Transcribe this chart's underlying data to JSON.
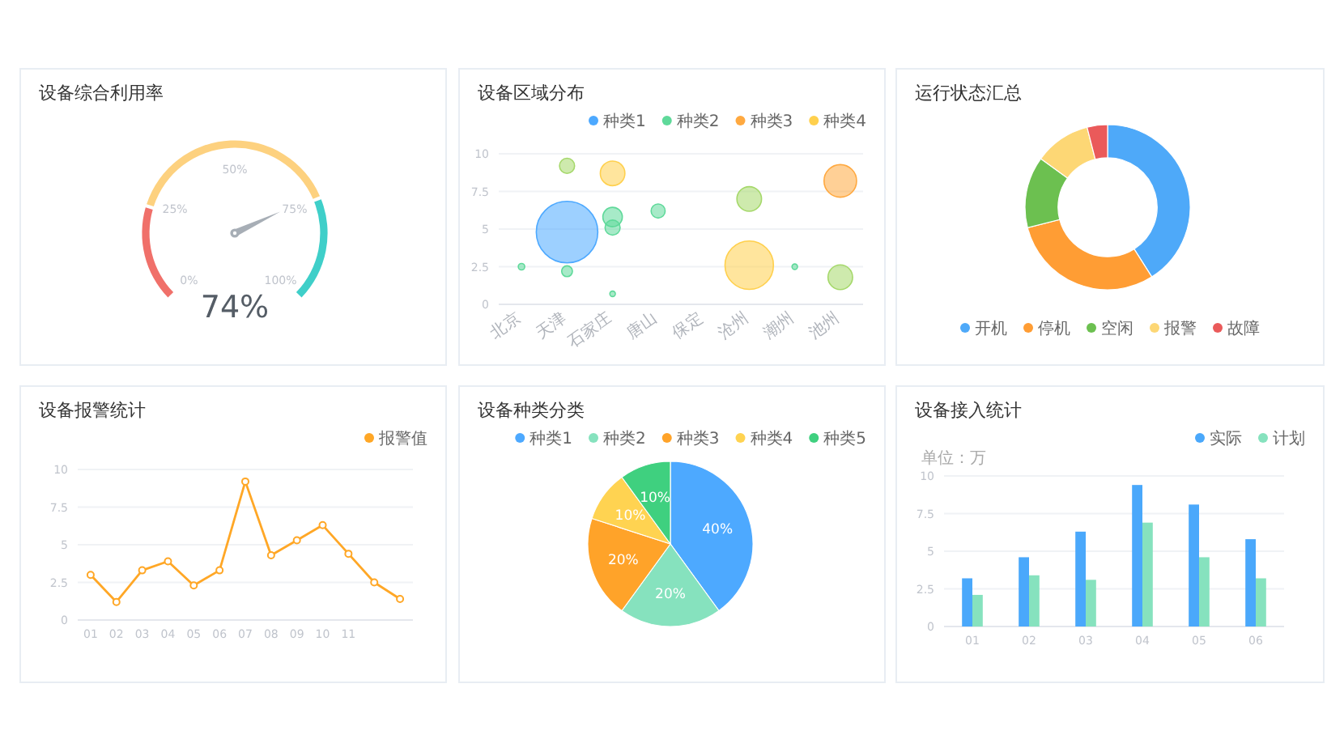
{
  "chart_data": [
    {
      "type": "donut",
      "title": "设备综合利用率",
      "categories": [
        null,
        null,
        null
      ],
      "values": [
        23,
        52,
        25
      ],
      "colors": [
        "#f0706a",
        "#fdd17f",
        "#3fcfc9"
      ],
      "annotations": [
        "74%",
        "0%",
        "25%",
        "50%",
        "75%",
        "100%"
      ]
    },
    {
      "type": "bubble",
      "title": "设备区域分布",
      "legend": "top right",
      "grid": "y",
      "categories": [
        "北京",
        "天津",
        "石家庄",
        "唐山",
        "保定",
        "沧州",
        "潮州",
        "池州"
      ],
      "ylim": [
        0,
        10
      ],
      "yticks": [
        0,
        2.5,
        5,
        7.5,
        10
      ],
      "series": [
        {
          "name": "种类1",
          "color": "#4da9ff",
          "x": [
            "天津"
          ],
          "values": [
            4.8
          ],
          "sizes": [
            1
          ]
        },
        {
          "name": "种类2",
          "color": "#5fd99a",
          "x": [
            "北京",
            "天津",
            "石家庄",
            "石家庄",
            "石家庄",
            "唐山",
            "潮州"
          ],
          "values": [
            2.5,
            2.2,
            0.7,
            5.8,
            5.1,
            6.2,
            2.5
          ],
          "sizes": [
            0.011,
            0.031,
            0.008,
            0.1,
            0.06,
            0.052,
            0.008
          ]
        },
        {
          "name": "种类3",
          "color": "#ffa940",
          "x": [
            "池州"
          ],
          "values": [
            8.2
          ],
          "sizes": [
            0.28
          ]
        },
        {
          "name": "种类4",
          "color": "#ffd04d",
          "x": [
            "石家庄",
            "沧州"
          ],
          "values": [
            8.7,
            2.6
          ],
          "sizes": [
            0.16,
            0.62
          ]
        },
        {
          "color": "#a5d86a",
          "x": [
            "天津",
            "沧州",
            "池州"
          ],
          "values": [
            9.2,
            7.0,
            1.8
          ],
          "sizes": [
            0.06,
            0.16,
            0.16
          ]
        }
      ]
    },
    {
      "type": "donut",
      "title": "运行状态汇总",
      "legend": "bottom",
      "categories": [
        "开机",
        "停机",
        "空闲",
        "报警",
        "故障"
      ],
      "values": [
        41,
        30,
        14,
        11,
        4
      ],
      "colors": [
        "#4ea9f9",
        "#ff9d34",
        "#6cc050",
        "#fdd775",
        "#ea5a5a"
      ]
    },
    {
      "type": "line",
      "title": "设备报警统计",
      "legend": "top right",
      "grid": "y",
      "marker": "circle",
      "categories": [
        "01",
        "02",
        "03",
        "04",
        "05",
        "06",
        "07",
        "08",
        "09",
        "10",
        "11",
        null,
        null
      ],
      "ylim": [
        0,
        10
      ],
      "yticks": [
        0,
        2.5,
        5,
        7.5,
        10
      ],
      "series": [
        {
          "name": "报警值",
          "color": "#ffa726",
          "values": [
            3.0,
            1.2,
            3.3,
            3.9,
            2.3,
            3.3,
            9.2,
            4.3,
            5.3,
            6.3,
            4.4,
            2.5,
            1.4
          ]
        }
      ]
    },
    {
      "type": "pie",
      "title": "设备种类分类",
      "legend": "top right",
      "categories": [
        "种类1",
        "种类2",
        "种类3",
        "种类4",
        "种类5"
      ],
      "values": [
        40,
        20,
        20,
        10,
        10
      ],
      "value_labels": [
        "40%",
        "20%",
        "20%",
        "10%",
        "10%"
      ],
      "colors": [
        "#4da9ff",
        "#86e2be",
        "#ffa329",
        "#ffd351",
        "#3fd07f"
      ]
    },
    {
      "type": "bar",
      "title": "设备接入统计",
      "ylabel": "单位：万",
      "legend": "top right",
      "grid": "y",
      "categories": [
        "01",
        "02",
        "03",
        "04",
        "05",
        "06"
      ],
      "ylim": [
        0,
        10
      ],
      "yticks": [
        0,
        2.5,
        5,
        7.5,
        10
      ],
      "series": [
        {
          "name": "实际",
          "color": "#4aa8fb",
          "values": [
            3.2,
            4.6,
            6.3,
            9.4,
            8.1,
            5.8
          ]
        },
        {
          "name": "计划",
          "color": "#86e2be",
          "values": [
            2.1,
            3.4,
            3.1,
            6.9,
            4.6,
            3.2
          ]
        }
      ]
    }
  ]
}
